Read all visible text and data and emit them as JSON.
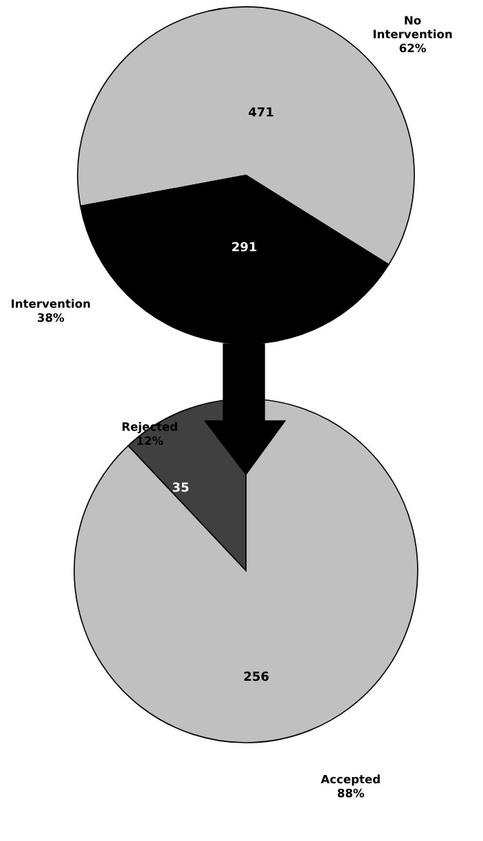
{
  "chart_data": [
    {
      "type": "pie",
      "categories": [
        "No\nIntervention",
        "Intervention"
      ],
      "values": [
        471,
        291
      ],
      "colors": [
        "#c0c0c0",
        "#000000"
      ],
      "data_labels": true,
      "annotations": [
        {
          "text": "62%",
          "x": "No\nIntervention"
        },
        {
          "text": "38%",
          "x": "Intervention"
        }
      ]
    },
    {
      "type": "pie",
      "categories": [
        "Rejected",
        "Accepted"
      ],
      "values": [
        35,
        256
      ],
      "colors": [
        "#404040",
        "#c0c0c0"
      ],
      "data_labels": true,
      "annotations": [
        {
          "text": "12%",
          "x": "Rejected"
        },
        {
          "text": "88%",
          "x": "Accepted"
        }
      ]
    }
  ]
}
